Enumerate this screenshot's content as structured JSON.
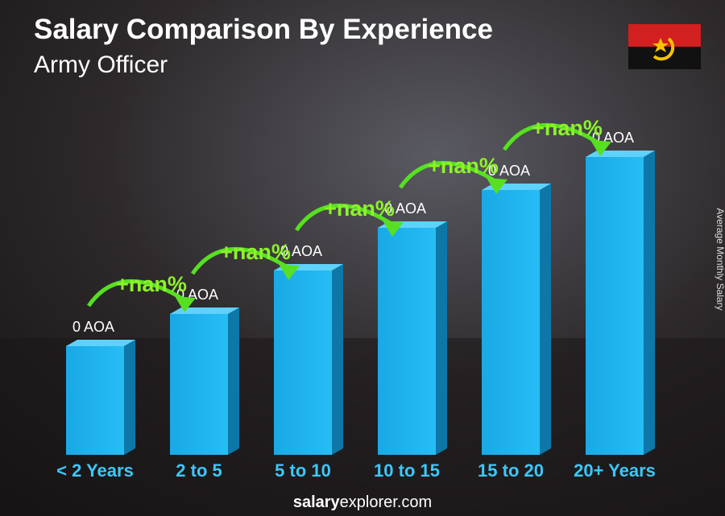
{
  "title": "Salary Comparison By Experience",
  "subtitle": "Army Officer",
  "axis_label": "Average Monthly Salary",
  "columns": [
    {
      "category": "< 2 Years",
      "amount": "0 AOA"
    },
    {
      "category": "2 to 5",
      "amount": "0 AOA"
    },
    {
      "category": "5 to 10",
      "amount": "0 AOA"
    },
    {
      "category": "10 to 15",
      "amount": "0 AOA"
    },
    {
      "category": "15 to 20",
      "amount": "0 AOA"
    },
    {
      "category": "20+ Years",
      "amount": "0 AOA"
    }
  ],
  "changes": [
    "+nan%",
    "+nan%",
    "+nan%",
    "+nan%",
    "+nan%"
  ],
  "footer": {
    "brand": "salary",
    "rest": "explorer.com"
  }
}
